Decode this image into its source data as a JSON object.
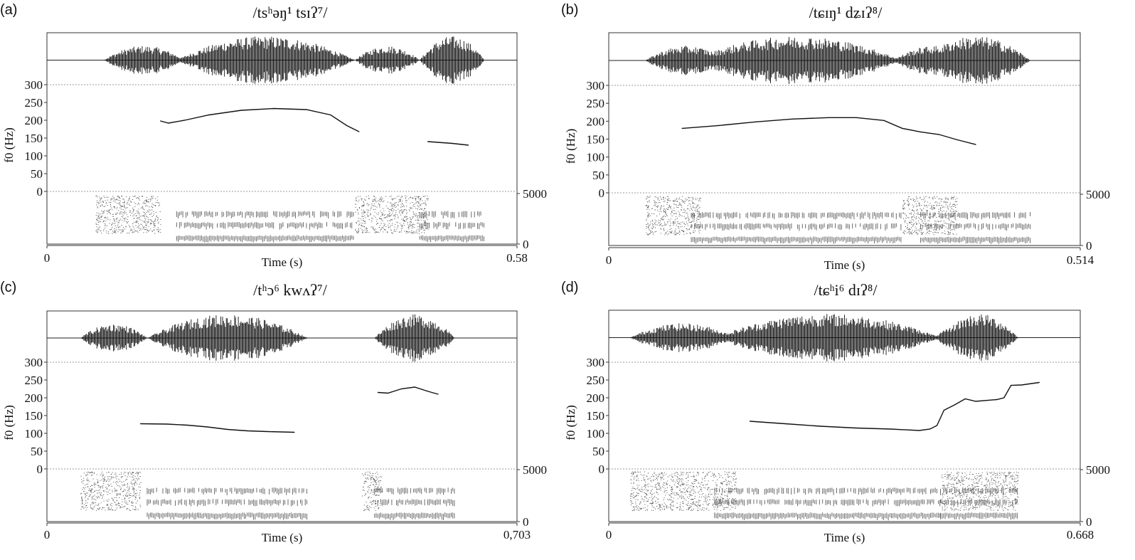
{
  "chart_data": [
    {
      "type": "line",
      "panel_label": "(a)",
      "title": "/tsʰəŋ¹ tsɪʔ⁷/",
      "xlabel": "Time (s)",
      "ylabel": "f0 (Hz)",
      "xlim": [
        0,
        0.58
      ],
      "x_tick_labels": [
        "0",
        "0.58"
      ],
      "ylim": [
        0,
        300
      ],
      "y_ticks": [
        0,
        50,
        100,
        150,
        200,
        250,
        300
      ],
      "spectrogram_freq_labels": [
        "5000",
        "0"
      ],
      "f0_segments": [
        {
          "x": [
            0.14,
            0.15,
            0.17,
            0.2,
            0.24,
            0.28,
            0.32,
            0.35,
            0.37,
            0.385
          ],
          "y": [
            198,
            192,
            200,
            215,
            228,
            233,
            230,
            215,
            185,
            168
          ]
        },
        {
          "x": [
            0.47,
            0.5,
            0.52
          ],
          "y": [
            140,
            135,
            130
          ]
        }
      ],
      "voiced_regions": [
        [
          0.07,
          0.17
        ],
        [
          0.16,
          0.38
        ],
        [
          0.38,
          0.46
        ],
        [
          0.46,
          0.54
        ]
      ],
      "aperiodic_regions": [
        [
          0.06,
          0.14
        ],
        [
          0.38,
          0.47
        ]
      ]
    },
    {
      "type": "line",
      "panel_label": "(b)",
      "title": "/tɕɪŋ¹ dʑɪʔ⁸/",
      "xlabel": "Time (s)",
      "ylabel": "f0 (Hz)",
      "xlim": [
        0,
        0.514
      ],
      "x_tick_labels": [
        "0",
        "0.514"
      ],
      "ylim": [
        0,
        300
      ],
      "y_ticks": [
        0,
        50,
        100,
        150,
        200,
        250,
        300
      ],
      "spectrogram_freq_labels": [
        "5000",
        "0"
      ],
      "f0_segments": [
        {
          "x": [
            0.08,
            0.12,
            0.16,
            0.2,
            0.24,
            0.27,
            0.3,
            0.32,
            0.34,
            0.36,
            0.38,
            0.4
          ],
          "y": [
            180,
            188,
            198,
            206,
            210,
            210,
            202,
            180,
            170,
            163,
            148,
            135
          ]
        }
      ],
      "voiced_regions": [
        [
          0.04,
          0.13
        ],
        [
          0.09,
          0.32
        ],
        [
          0.31,
          0.4
        ],
        [
          0.34,
          0.46
        ]
      ],
      "aperiodic_regions": [
        [
          0.04,
          0.1
        ],
        [
          0.32,
          0.38
        ]
      ]
    },
    {
      "type": "line",
      "panel_label": "(c)",
      "title": "/tʰɔ⁶ kwʌʔ⁷/",
      "xlabel": "Time (s)",
      "ylabel": "f0 (Hz)",
      "xlim": [
        0,
        0.703
      ],
      "x_tick_labels": [
        "0",
        "0,703"
      ],
      "ylim": [
        0,
        300
      ],
      "y_ticks": [
        0,
        50,
        100,
        150,
        200,
        250,
        300
      ],
      "spectrogram_freq_labels": [
        "5000",
        "0"
      ],
      "f0_segments": [
        {
          "x": [
            0.14,
            0.18,
            0.21,
            0.24,
            0.27,
            0.3,
            0.33,
            0.37
          ],
          "y": [
            127,
            126,
            123,
            118,
            111,
            107,
            105,
            103
          ]
        },
        {
          "x": [
            0.495,
            0.51,
            0.53,
            0.55,
            0.57,
            0.585
          ],
          "y": [
            215,
            213,
            225,
            230,
            218,
            210
          ]
        }
      ],
      "voiced_regions": [
        [
          0.05,
          0.15
        ],
        [
          0.15,
          0.39
        ],
        [
          0.49,
          0.61
        ],
        [
          0.49,
          0.61
        ]
      ],
      "aperiodic_regions": [
        [
          0.05,
          0.14
        ],
        [
          0.47,
          0.5
        ]
      ]
    },
    {
      "type": "line",
      "panel_label": "(d)",
      "title": "/tɕʰi⁶ dɪʔ⁸/",
      "xlabel": "Time (s)",
      "ylabel": "f0 (Hz)",
      "xlim": [
        0,
        0.668
      ],
      "x_tick_labels": [
        "0",
        "0.668"
      ],
      "ylim": [
        0,
        300
      ],
      "y_ticks": [
        0,
        50,
        100,
        150,
        200,
        250,
        300
      ],
      "spectrogram_freq_labels": [
        "5000",
        "0"
      ],
      "f0_segments": [
        {
          "x": [
            0.2,
            0.25,
            0.3,
            0.35,
            0.4,
            0.44,
            0.455,
            0.465,
            0.475,
            0.49,
            0.505,
            0.52,
            0.55,
            0.56,
            0.57,
            0.585,
            0.61
          ],
          "y": [
            134,
            127,
            120,
            115,
            112,
            108,
            112,
            122,
            165,
            180,
            197,
            190,
            195,
            200,
            235,
            236,
            243
          ]
        }
      ],
      "voiced_regions": [
        [
          0.03,
          0.18
        ],
        [
          0.15,
          0.47
        ],
        [
          0.46,
          0.56
        ],
        [
          0.47,
          0.58
        ]
      ],
      "aperiodic_regions": [
        [
          0.03,
          0.18
        ],
        [
          0.47,
          0.58
        ]
      ]
    }
  ]
}
